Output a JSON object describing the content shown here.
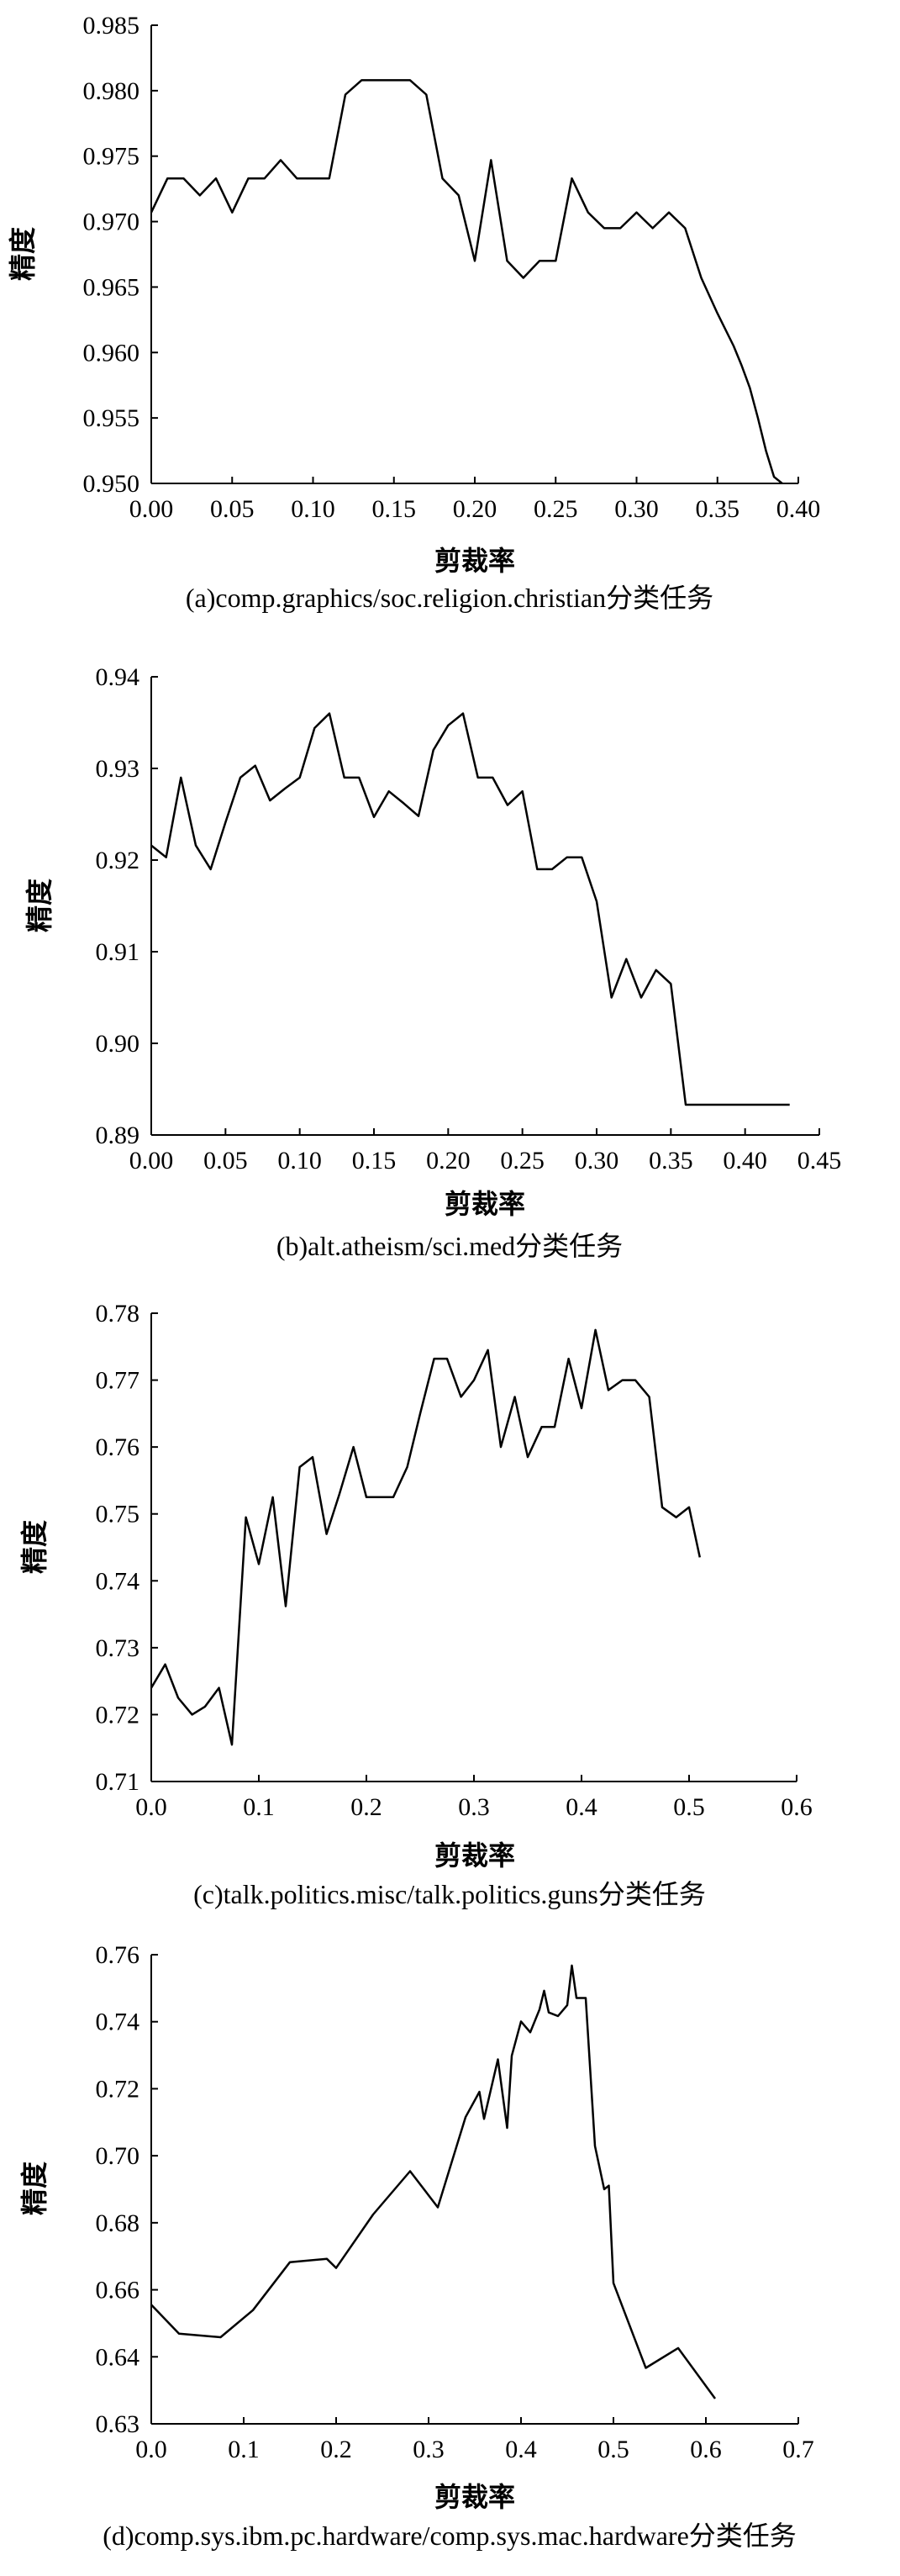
{
  "chart_data": [
    {
      "type": "line",
      "caption": "(a)comp.graphics/soc.religion.christian分类任务",
      "xlabel": "剪裁率",
      "ylabel": "精度",
      "xlim": [
        0.0,
        0.4
      ],
      "ylim": [
        0.95,
        0.985
      ],
      "xticks": [
        "0.00",
        "0.05",
        "0.10",
        "0.15",
        "0.20",
        "0.25",
        "0.30",
        "0.35",
        "0.40"
      ],
      "yticks": [
        "0.950",
        "0.955",
        "0.960",
        "0.965",
        "0.970",
        "0.975",
        "0.980",
        "0.985"
      ],
      "x": [
        0.0,
        0.01,
        0.02,
        0.03,
        0.04,
        0.05,
        0.06,
        0.07,
        0.08,
        0.09,
        0.1,
        0.11,
        0.12,
        0.13,
        0.14,
        0.15,
        0.16,
        0.17,
        0.18,
        0.19,
        0.2,
        0.21,
        0.22,
        0.23,
        0.24,
        0.25,
        0.26,
        0.27,
        0.28,
        0.29,
        0.3,
        0.31,
        0.32,
        0.33,
        0.34,
        0.35,
        0.36,
        0.365,
        0.37,
        0.375,
        0.38,
        0.385,
        0.39
      ],
      "y": [
        0.9707,
        0.9733,
        0.9733,
        0.972,
        0.9733,
        0.9707,
        0.9733,
        0.9733,
        0.9747,
        0.9733,
        0.9733,
        0.9733,
        0.9797,
        0.9808,
        0.9808,
        0.9808,
        0.9808,
        0.9797,
        0.9733,
        0.972,
        0.967,
        0.9747,
        0.967,
        0.9657,
        0.967,
        0.967,
        0.9733,
        0.9707,
        0.9695,
        0.9695,
        0.9707,
        0.9695,
        0.9707,
        0.9695,
        0.9657,
        0.963,
        0.9605,
        0.959,
        0.9573,
        0.955,
        0.9525,
        0.9505,
        0.95
      ]
    },
    {
      "type": "line",
      "caption": "(b)alt.atheism/sci.med分类任务",
      "xlabel": "剪裁率",
      "ylabel": "精度",
      "xlim": [
        0.0,
        0.45
      ],
      "ylim": [
        0.89,
        0.94
      ],
      "xticks": [
        "0.00",
        "0.05",
        "0.10",
        "0.15",
        "0.20",
        "0.25",
        "0.30",
        "0.35",
        "0.40",
        "0.45"
      ],
      "yticks": [
        "0.89",
        "0.90",
        "0.91",
        "0.92",
        "0.93",
        "0.94"
      ],
      "x": [
        0.0,
        0.01,
        0.02,
        0.03,
        0.04,
        0.05,
        0.06,
        0.07,
        0.08,
        0.09,
        0.1,
        0.11,
        0.12,
        0.13,
        0.14,
        0.15,
        0.16,
        0.17,
        0.18,
        0.19,
        0.2,
        0.21,
        0.22,
        0.23,
        0.24,
        0.25,
        0.26,
        0.27,
        0.28,
        0.29,
        0.3,
        0.31,
        0.32,
        0.33,
        0.34,
        0.35,
        0.36,
        0.37,
        0.38,
        0.39,
        0.4,
        0.41,
        0.42,
        0.43
      ],
      "y": [
        0.9216,
        0.9203,
        0.929,
        0.9216,
        0.919,
        0.9241,
        0.929,
        0.9303,
        0.9265,
        0.9278,
        0.929,
        0.9344,
        0.936,
        0.929,
        0.929,
        0.9247,
        0.9275,
        0.9262,
        0.9248,
        0.932,
        0.9347,
        0.936,
        0.929,
        0.929,
        0.926,
        0.9275,
        0.919,
        0.919,
        0.9203,
        0.9203,
        0.9155,
        0.905,
        0.9092,
        0.905,
        0.908,
        0.9065,
        0.8933,
        0.8933,
        0.8933,
        0.8933,
        0.8933,
        0.8933,
        0.8933,
        0.8933
      ]
    },
    {
      "type": "line",
      "caption": "(c)talk.politics.misc/talk.politics.guns分类任务",
      "xlabel": "剪裁率",
      "ylabel": "精度",
      "xlim": [
        0.0,
        0.6
      ],
      "ylim": [
        0.71,
        0.78
      ],
      "xticks": [
        "0.0",
        "0.1",
        "0.2",
        "0.3",
        "0.4",
        "0.5",
        "0.6"
      ],
      "yticks": [
        "0.71",
        "0.72",
        "0.73",
        "0.74",
        "0.75",
        "0.76",
        "0.77",
        "0.78"
      ],
      "x": [
        0.0,
        0.013,
        0.025,
        0.038,
        0.05,
        0.063,
        0.075,
        0.088,
        0.1,
        0.113,
        0.125,
        0.138,
        0.15,
        0.163,
        0.175,
        0.188,
        0.2,
        0.213,
        0.225,
        0.238,
        0.25,
        0.263,
        0.275,
        0.288,
        0.3,
        0.313,
        0.325,
        0.338,
        0.35,
        0.363,
        0.375,
        0.388,
        0.4,
        0.413,
        0.425,
        0.438,
        0.45,
        0.463,
        0.475,
        0.488,
        0.5,
        0.51
      ],
      "y": [
        0.724,
        0.7275,
        0.7225,
        0.72,
        0.7212,
        0.724,
        0.7155,
        0.7495,
        0.7425,
        0.7525,
        0.7362,
        0.757,
        0.7585,
        0.747,
        0.753,
        0.76,
        0.7525,
        0.7525,
        0.7525,
        0.757,
        0.765,
        0.7732,
        0.7732,
        0.7675,
        0.77,
        0.7745,
        0.76,
        0.7675,
        0.7585,
        0.763,
        0.763,
        0.7732,
        0.7658,
        0.7775,
        0.7685,
        0.77,
        0.77,
        0.7675,
        0.751,
        0.7495,
        0.751,
        0.7435
      ]
    },
    {
      "type": "line",
      "caption": "(d)comp.sys.ibm.pc.hardware/comp.sys.mac.hardware分类任务",
      "xlabel": "剪裁率",
      "ylabel": "精度",
      "xlim": [
        0.0,
        0.7
      ],
      "ylim": [
        0.63,
        0.76
      ],
      "xticks": [
        "0.0",
        "0.1",
        "0.2",
        "0.3",
        "0.4",
        "0.5",
        "0.6",
        "0.7"
      ],
      "yticks": [
        "0.63",
        "0.64",
        "0.66",
        "0.68",
        "0.70",
        "0.72",
        "0.74",
        "0.76"
      ],
      "x": [
        0.0,
        0.03,
        0.075,
        0.11,
        0.15,
        0.19,
        0.2,
        0.24,
        0.28,
        0.31,
        0.34,
        0.355,
        0.36,
        0.375,
        0.385,
        0.39,
        0.4,
        0.41,
        0.42,
        0.425,
        0.43,
        0.44,
        0.45,
        0.455,
        0.46,
        0.465,
        0.47,
        0.48,
        0.49,
        0.495,
        0.5,
        0.535,
        0.57,
        0.61
      ],
      "y": [
        0.663,
        0.655,
        0.654,
        0.6615,
        0.6748,
        0.6757,
        0.6732,
        0.688,
        0.7,
        0.69,
        0.715,
        0.722,
        0.7145,
        0.731,
        0.712,
        0.732,
        0.7415,
        0.7385,
        0.7448,
        0.75,
        0.744,
        0.743,
        0.746,
        0.757,
        0.748,
        0.748,
        0.748,
        0.707,
        0.695,
        0.696,
        0.669,
        0.6455,
        0.651,
        0.637
      ]
    }
  ]
}
